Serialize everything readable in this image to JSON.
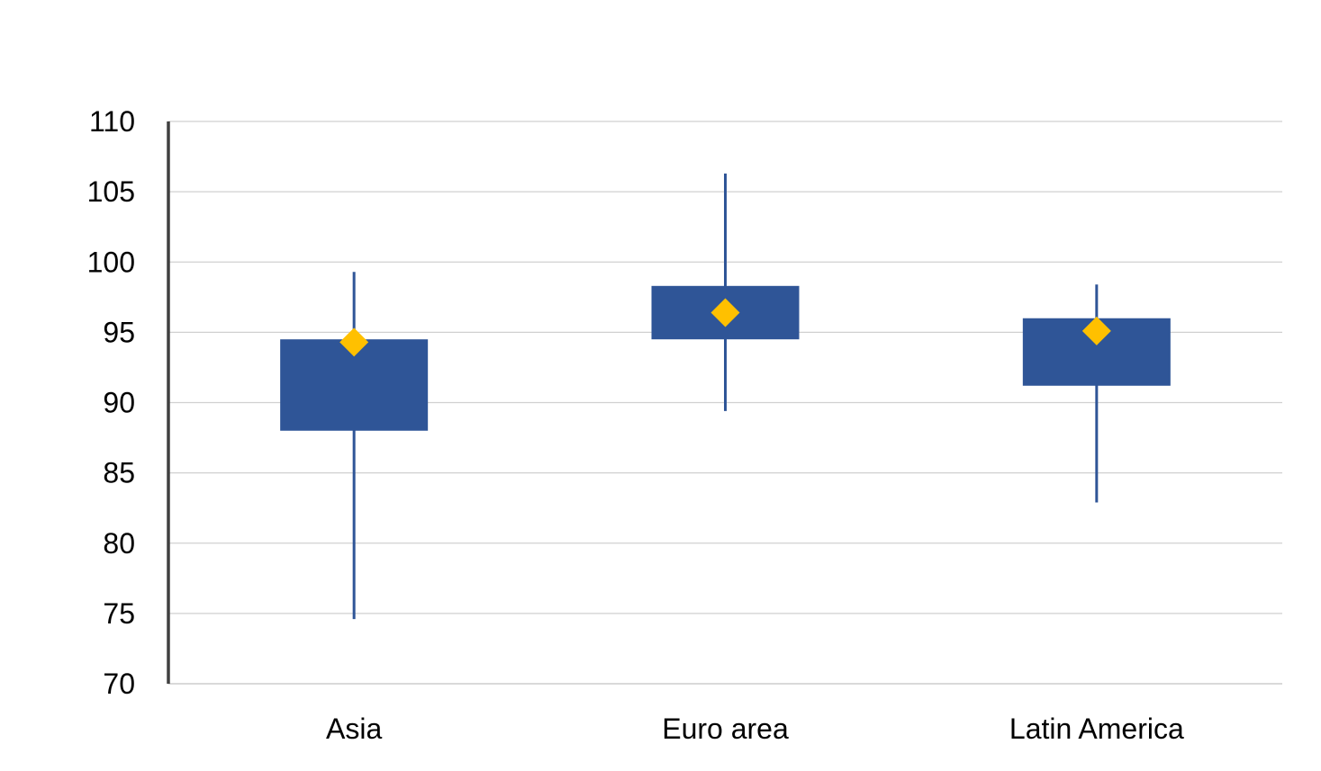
{
  "chart_data": {
    "type": "box",
    "title": "",
    "xlabel": "",
    "ylabel": "",
    "ylim": [
      70,
      110
    ],
    "yticks": [
      70,
      75,
      80,
      85,
      90,
      95,
      100,
      105,
      110
    ],
    "ytick_labels": [
      "70",
      "75",
      "80",
      "85",
      "90",
      "95",
      "100",
      "105",
      "110"
    ],
    "grid": "horizontal",
    "categories": [
      "Asia",
      "Euro area",
      "Latin America"
    ],
    "boxes": [
      {
        "category": "Asia",
        "min": 74.6,
        "q1": 88.0,
        "q3": 94.5,
        "max": 99.3,
        "marker": 94.3
      },
      {
        "category": "Euro area",
        "min": 89.4,
        "q1": 94.5,
        "q3": 98.3,
        "max": 106.3,
        "marker": 96.4
      },
      {
        "category": "Latin America",
        "min": 82.9,
        "q1": 91.2,
        "q3": 96.0,
        "max": 98.4,
        "marker": 95.1
      }
    ],
    "colors": {
      "box": "#2f5597",
      "whisker": "#2f5597",
      "marker": "#ffc000",
      "grid": "#d0d0d0",
      "axis": "#404040"
    }
  }
}
